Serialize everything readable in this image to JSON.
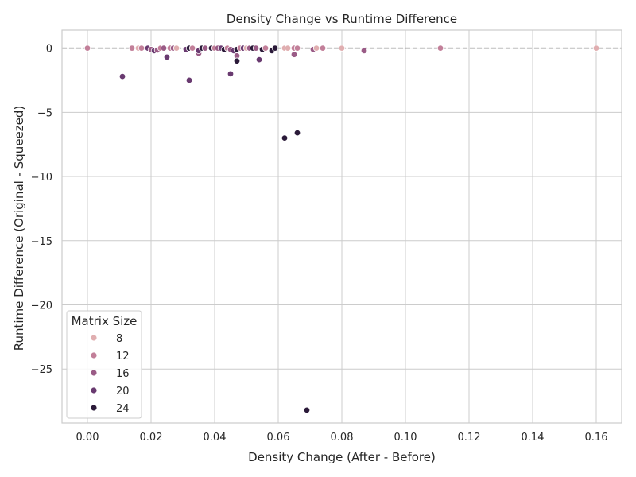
{
  "chart_data": {
    "type": "scatter",
    "title": "Density Change vs Runtime Difference",
    "xlabel": "Density Change (After - Before)",
    "ylabel": "Runtime Difference (Original - Squeezed)",
    "xlim": [
      -0.008,
      0.168
    ],
    "ylim": [
      -29.2,
      1.4
    ],
    "x_ticks": [
      0.0,
      0.02,
      0.04,
      0.06,
      0.08,
      0.1,
      0.12,
      0.14,
      0.16
    ],
    "x_tick_labels": [
      "0.00",
      "0.02",
      "0.04",
      "0.06",
      "0.08",
      "0.10",
      "0.12",
      "0.14",
      "0.16"
    ],
    "y_ticks": [
      0,
      -5,
      -10,
      -15,
      -20,
      -25
    ],
    "y_tick_labels": [
      "0",
      "−5",
      "−10",
      "−15",
      "−20",
      "−25"
    ],
    "grid": true,
    "reference_line": {
      "y": 0,
      "style": "dashed",
      "color": "#7f7f7f"
    },
    "legend": {
      "title": "Matrix Size",
      "placement": "lower-left",
      "entries": [
        {
          "label": "8",
          "color": "#e0aeb0"
        },
        {
          "label": "12",
          "color": "#c27f99"
        },
        {
          "label": "16",
          "color": "#9a5b86"
        },
        {
          "label": "20",
          "color": "#693a70"
        },
        {
          "label": "24",
          "color": "#2b1a39"
        }
      ]
    },
    "hue_colors": {
      "8": "#e0aeb0",
      "12": "#c27f99",
      "16": "#9a5b86",
      "20": "#693a70",
      "24": "#2b1a39"
    },
    "points": [
      {
        "x": 0.0,
        "y": 0.0,
        "size": 12
      },
      {
        "x": 0.014,
        "y": 0.0,
        "size": 12
      },
      {
        "x": 0.016,
        "y": 0.0,
        "size": 8
      },
      {
        "x": 0.017,
        "y": 0.0,
        "size": 12
      },
      {
        "x": 0.011,
        "y": -2.2,
        "size": 20
      },
      {
        "x": 0.019,
        "y": 0.0,
        "size": 20
      },
      {
        "x": 0.02,
        "y": -0.1,
        "size": 16
      },
      {
        "x": 0.021,
        "y": -0.2,
        "size": 20
      },
      {
        "x": 0.022,
        "y": -0.15,
        "size": 16
      },
      {
        "x": 0.023,
        "y": 0.0,
        "size": 12
      },
      {
        "x": 0.024,
        "y": 0.0,
        "size": 16
      },
      {
        "x": 0.025,
        "y": -0.7,
        "size": 20
      },
      {
        "x": 0.026,
        "y": 0.0,
        "size": 12
      },
      {
        "x": 0.027,
        "y": 0.0,
        "size": 16
      },
      {
        "x": 0.028,
        "y": 0.0,
        "size": 8
      },
      {
        "x": 0.031,
        "y": -0.1,
        "size": 20
      },
      {
        "x": 0.032,
        "y": -2.5,
        "size": 20
      },
      {
        "x": 0.032,
        "y": 0.0,
        "size": 24
      },
      {
        "x": 0.033,
        "y": 0.0,
        "size": 12
      },
      {
        "x": 0.035,
        "y": -0.4,
        "size": 16
      },
      {
        "x": 0.035,
        "y": -0.2,
        "size": 20
      },
      {
        "x": 0.036,
        "y": 0.0,
        "size": 24
      },
      {
        "x": 0.037,
        "y": 0.0,
        "size": 16
      },
      {
        "x": 0.039,
        "y": 0.0,
        "size": 24
      },
      {
        "x": 0.04,
        "y": 0.0,
        "size": 12
      },
      {
        "x": 0.041,
        "y": 0.0,
        "size": 16
      },
      {
        "x": 0.042,
        "y": 0.0,
        "size": 20
      },
      {
        "x": 0.043,
        "y": -0.1,
        "size": 24
      },
      {
        "x": 0.044,
        "y": 0.0,
        "size": 12
      },
      {
        "x": 0.045,
        "y": -2.0,
        "size": 20
      },
      {
        "x": 0.045,
        "y": -0.1,
        "size": 16
      },
      {
        "x": 0.046,
        "y": -0.2,
        "size": 20
      },
      {
        "x": 0.047,
        "y": -0.6,
        "size": 16
      },
      {
        "x": 0.047,
        "y": -1.0,
        "size": 24
      },
      {
        "x": 0.047,
        "y": -0.1,
        "size": 24
      },
      {
        "x": 0.048,
        "y": 0.0,
        "size": 12
      },
      {
        "x": 0.049,
        "y": 0.0,
        "size": 20
      },
      {
        "x": 0.05,
        "y": 0.0,
        "size": 8
      },
      {
        "x": 0.051,
        "y": 0.0,
        "size": 16
      },
      {
        "x": 0.052,
        "y": 0.0,
        "size": 24
      },
      {
        "x": 0.053,
        "y": 0.0,
        "size": 16
      },
      {
        "x": 0.054,
        "y": -0.9,
        "size": 20
      },
      {
        "x": 0.055,
        "y": -0.1,
        "size": 24
      },
      {
        "x": 0.056,
        "y": 0.0,
        "size": 12
      },
      {
        "x": 0.058,
        "y": -0.2,
        "size": 24
      },
      {
        "x": 0.059,
        "y": 0.0,
        "size": 24
      },
      {
        "x": 0.062,
        "y": 0.0,
        "size": 8
      },
      {
        "x": 0.062,
        "y": -7.0,
        "size": 24
      },
      {
        "x": 0.063,
        "y": 0.0,
        "size": 8
      },
      {
        "x": 0.065,
        "y": -0.5,
        "size": 16
      },
      {
        "x": 0.065,
        "y": 0.0,
        "size": 12
      },
      {
        "x": 0.066,
        "y": -6.6,
        "size": 24
      },
      {
        "x": 0.066,
        "y": 0.0,
        "size": 12
      },
      {
        "x": 0.069,
        "y": -28.2,
        "size": 24
      },
      {
        "x": 0.071,
        "y": -0.1,
        "size": 16
      },
      {
        "x": 0.072,
        "y": 0.0,
        "size": 8
      },
      {
        "x": 0.074,
        "y": 0.0,
        "size": 12
      },
      {
        "x": 0.08,
        "y": 0.0,
        "size": 8
      },
      {
        "x": 0.087,
        "y": -0.2,
        "size": 16
      },
      {
        "x": 0.111,
        "y": 0.0,
        "size": 12
      },
      {
        "x": 0.16,
        "y": 0.0,
        "size": 8
      }
    ]
  }
}
